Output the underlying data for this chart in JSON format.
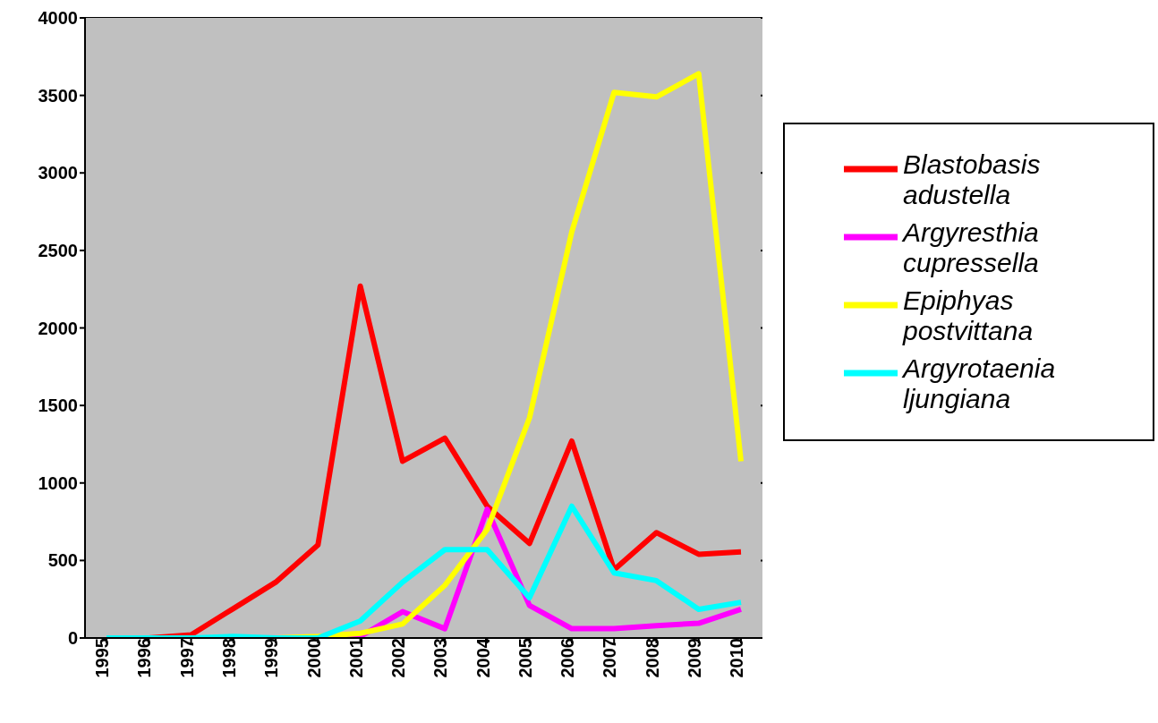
{
  "chart_data": {
    "type": "line",
    "categories": [
      "1995",
      "1996",
      "1997",
      "1998",
      "1999",
      "2000",
      "2001",
      "2002",
      "2003",
      "2004",
      "2005",
      "2006",
      "2007",
      "2008",
      "2009",
      "2010"
    ],
    "series": [
      {
        "name": "Blastobasis adustella",
        "color": "#ff0000",
        "values": [
          0,
          0,
          20,
          190,
          360,
          600,
          2270,
          1140,
          1290,
          850,
          610,
          1270,
          440,
          680,
          540,
          555
        ]
      },
      {
        "name": "Argyresthia cupressella",
        "color": "#ff00ff",
        "values": [
          null,
          null,
          null,
          null,
          null,
          0,
          10,
          170,
          60,
          830,
          210,
          60,
          60,
          80,
          95,
          185
        ]
      },
      {
        "name": "Epiphyas postvittana",
        "color": "#ffff00",
        "values": [
          null,
          null,
          null,
          0,
          0,
          10,
          30,
          90,
          340,
          700,
          1420,
          2620,
          3520,
          3490,
          3640,
          1140
        ]
      },
      {
        "name": "Argyrotaenia ljungiana",
        "color": "#00ffff",
        "values": [
          0,
          0,
          0,
          10,
          0,
          0,
          110,
          360,
          570,
          570,
          260,
          850,
          420,
          370,
          185,
          230
        ]
      }
    ],
    "ylim": [
      0,
      4000
    ],
    "yticks": [
      0,
      500,
      1000,
      1500,
      2000,
      2500,
      3000,
      3500,
      4000
    ],
    "grid": "y",
    "legend": "right",
    "marker": "none",
    "line_style": "solid"
  }
}
